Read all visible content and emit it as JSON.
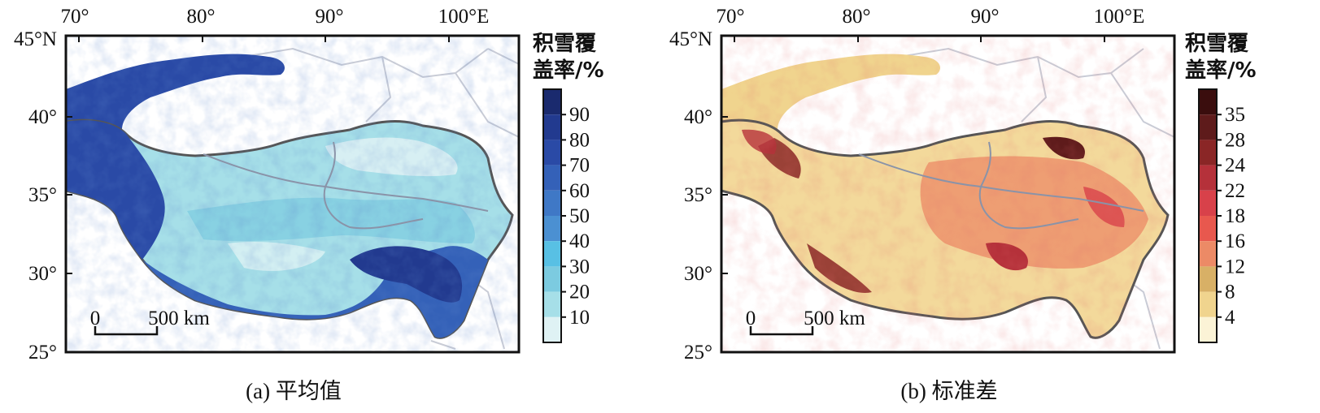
{
  "panels": [
    {
      "id": "a",
      "caption": "(a) 平均值",
      "lon_labels": [
        "70°",
        "80°",
        "90°",
        "100°E"
      ],
      "lat_labels": [
        "45°N",
        "40°",
        "35°",
        "30°",
        "25°"
      ],
      "legend_title_line1": "积雪覆",
      "legend_title_line2": "盖率/%",
      "legend_ticks": [
        "90",
        "80",
        "70",
        "60",
        "50",
        "40",
        "30",
        "20",
        "10"
      ],
      "legend_colors": [
        "#1a2a6e",
        "#223a8f",
        "#2a4aa6",
        "#3461b8",
        "#3f78c6",
        "#4b90d2",
        "#58c0e4",
        "#7ccbe0",
        "#a6dfe8",
        "#dff2f4"
      ],
      "scale_bar": {
        "start_label": "0",
        "end_label": "500 km"
      }
    },
    {
      "id": "b",
      "caption": "(b) 标准差",
      "lon_labels": [
        "70°",
        "80°",
        "90°",
        "100°E"
      ],
      "lat_labels": [
        "45°N",
        "40°",
        "35°",
        "30°",
        "25°"
      ],
      "legend_title_line1": "积雪覆",
      "legend_title_line2": "盖率/%",
      "legend_ticks": [
        "35",
        "28",
        "24",
        "22",
        "18",
        "16",
        "12",
        "8",
        "4"
      ],
      "legend_colors": [
        "#3a0d0d",
        "#5e1b1b",
        "#8a2626",
        "#b5313a",
        "#d8414a",
        "#e8584e",
        "#ec8a66",
        "#d8b066",
        "#f0d48e",
        "#fbf3d6"
      ],
      "scale_bar": {
        "start_label": "0",
        "end_label": "500 km"
      }
    }
  ]
}
